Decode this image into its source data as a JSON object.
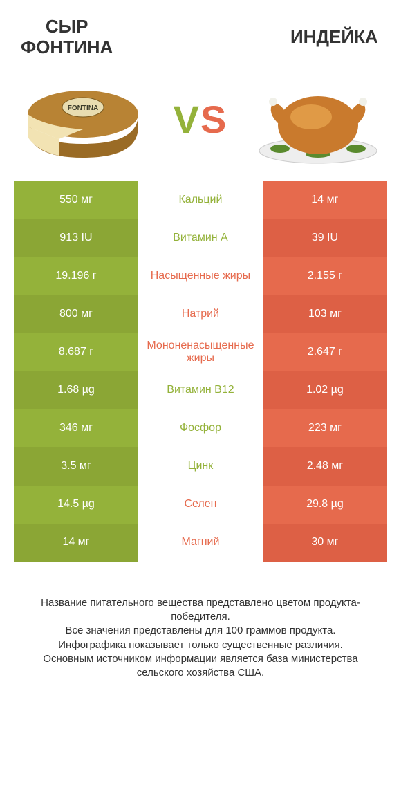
{
  "colors": {
    "left_food": "#94b23a",
    "right_food": "#e66a4d",
    "left_alt": "#8ba635",
    "right_alt": "#dd6045",
    "text_dark": "#333333",
    "background": "#ffffff"
  },
  "header": {
    "left_title": "Сыр Фонтина",
    "right_title": "Индейка",
    "vs_v": "V",
    "vs_s": "S"
  },
  "table": {
    "rows": [
      {
        "label": "Кальций",
        "left": "550 мг",
        "right": "14 мг",
        "winner": "left"
      },
      {
        "label": "Витамин A",
        "left": "913 IU",
        "right": "39 IU",
        "winner": "left"
      },
      {
        "label": "Насыщенные жиры",
        "left": "19.196 г",
        "right": "2.155 г",
        "winner": "right"
      },
      {
        "label": "Натрий",
        "left": "800 мг",
        "right": "103 мг",
        "winner": "right"
      },
      {
        "label": "Мононенасыщенные жиры",
        "left": "8.687 г",
        "right": "2.647 г",
        "winner": "right"
      },
      {
        "label": "Витамин B12",
        "left": "1.68 µg",
        "right": "1.02 µg",
        "winner": "left"
      },
      {
        "label": "Фосфор",
        "left": "346 мг",
        "right": "223 мг",
        "winner": "left"
      },
      {
        "label": "Цинк",
        "left": "3.5 мг",
        "right": "2.48 мг",
        "winner": "left"
      },
      {
        "label": "Селен",
        "left": "14.5 µg",
        "right": "29.8 µg",
        "winner": "right"
      },
      {
        "label": "Магний",
        "left": "14 мг",
        "right": "30 мг",
        "winner": "right"
      }
    ]
  },
  "footer": {
    "line1": "Название питательного вещества представлено цветом продукта-победителя.",
    "line2": "Все значения представлены для 100 граммов продукта.",
    "line3": "Инфографика показывает только существенные различия.",
    "line4": "Основным источником информации является база министерства сельского хозяйства США."
  }
}
